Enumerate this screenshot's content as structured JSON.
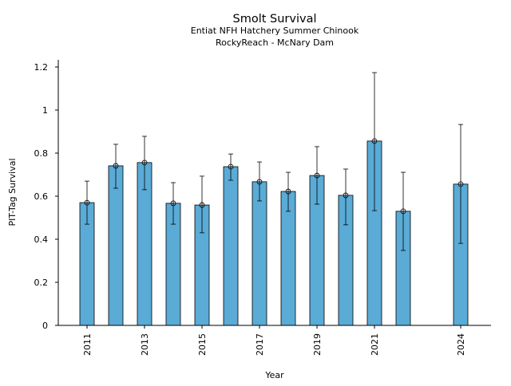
{
  "chart_data": {
    "type": "bar",
    "title": "Smolt Survival",
    "subtitle": [
      "Entiat NFH Hatchery Summer Chinook",
      "RockyReach - McNary Dam"
    ],
    "xlabel": "Year",
    "ylabel": "PIT-Tag Survival",
    "ylim": [
      0,
      1.23
    ],
    "yticks": [
      0,
      0.2,
      0.4,
      0.6,
      0.8,
      1,
      1.2
    ],
    "ytick_labels": [
      "0",
      "0.2",
      "0.4",
      "0.6",
      "0.8",
      "1",
      "1.2"
    ],
    "xticks": [
      2011,
      2013,
      2015,
      2017,
      2019,
      2021,
      2024
    ],
    "xtick_labels": [
      "2011",
      "2013",
      "2015",
      "2017",
      "2019",
      "2021",
      "2024"
    ],
    "grid": false,
    "bar_color": "#5aabd6",
    "x": [
      2011,
      2012,
      2013,
      2014,
      2015,
      2016,
      2017,
      2018,
      2019,
      2020,
      2021,
      2022,
      2024
    ],
    "values": [
      0.57,
      0.741,
      0.756,
      0.567,
      0.559,
      0.737,
      0.667,
      0.622,
      0.696,
      0.604,
      0.856,
      0.53,
      0.656
    ],
    "error_upper": [
      0.67,
      0.841,
      0.878,
      0.663,
      0.693,
      0.796,
      0.759,
      0.711,
      0.83,
      0.726,
      1.174,
      0.711,
      0.933
    ],
    "error_lower": [
      0.47,
      0.637,
      0.63,
      0.47,
      0.43,
      0.674,
      0.578,
      0.53,
      0.563,
      0.467,
      0.533,
      0.348,
      0.381
    ]
  }
}
